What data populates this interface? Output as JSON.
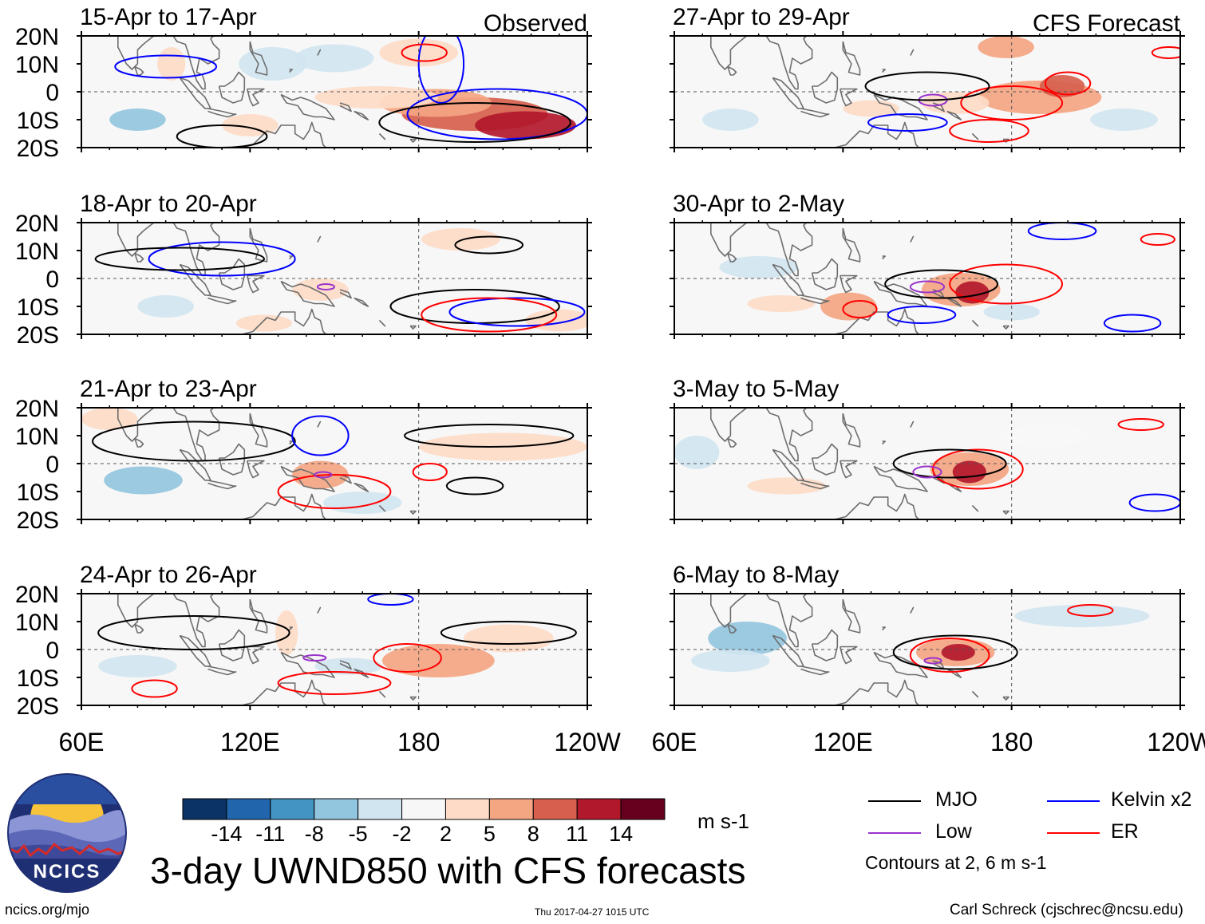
{
  "chart_data": {
    "type": "heatmap",
    "title": "3-day UWND850 with CFS forecasts",
    "units": "m s-1",
    "column_labels": {
      "left": "Observed",
      "right": "CFS Forecast"
    },
    "x_ticks": [
      "60E",
      "120E",
      "180",
      "120W"
    ],
    "x_range_deg": [
      60,
      240
    ],
    "y_ticks": [
      "20N",
      "10N",
      "0",
      "10S",
      "20S"
    ],
    "y_range_deg": [
      -20,
      20
    ],
    "colorbar": {
      "levels": [
        "-14",
        "-11",
        "-8",
        "-5",
        "-2",
        "2",
        "5",
        "8",
        "11",
        "14"
      ],
      "colors": [
        "#0b3366",
        "#2166ac",
        "#4393c3",
        "#92c5de",
        "#d1e5f0",
        "#f7f7f7",
        "#fddbc7",
        "#f4a582",
        "#d6604d",
        "#b2182b",
        "#67001f"
      ]
    },
    "panels": [
      {
        "id": "p1",
        "column": "left",
        "row": 0,
        "label": "15-Apr to 17-Apr",
        "tag": "Observed",
        "anomalies": [
          {
            "lon": 200,
            "lat": -8,
            "rx": 26,
            "ry": 6,
            "value": 11
          },
          {
            "lon": 218,
            "lat": -12,
            "rx": 18,
            "ry": 5,
            "value": 12
          },
          {
            "lon": 186,
            "lat": -4,
            "rx": 20,
            "ry": 5,
            "value": 8
          },
          {
            "lon": 165,
            "lat": -2,
            "rx": 22,
            "ry": 4,
            "value": 4
          },
          {
            "lon": 180,
            "lat": 14,
            "rx": 14,
            "ry": 5,
            "value": 4
          },
          {
            "lon": 92,
            "lat": 10,
            "rx": 5,
            "ry": 6,
            "value": 4
          },
          {
            "lon": 80,
            "lat": -10,
            "rx": 10,
            "ry": 4,
            "value": -5
          },
          {
            "lon": 128,
            "lat": 10,
            "rx": 12,
            "ry": 6,
            "value": -3
          },
          {
            "lon": 120,
            "lat": -12,
            "rx": 10,
            "ry": 4,
            "value": 4
          },
          {
            "lon": 150,
            "lat": 12,
            "rx": 14,
            "ry": 5,
            "value": -3
          }
        ],
        "contours": [
          {
            "type": "Kelvin",
            "lon": 208,
            "lat": -8,
            "rx": 32,
            "ry": 9
          },
          {
            "type": "Kelvin",
            "lon": 188,
            "lat": 10,
            "rx": 8,
            "ry": 14
          },
          {
            "type": "MJO",
            "lon": 200,
            "lat": -11,
            "rx": 34,
            "ry": 7
          },
          {
            "type": "MJO",
            "lon": 110,
            "lat": -16,
            "rx": 16,
            "ry": 4
          },
          {
            "type": "Kelvin",
            "lon": 90,
            "lat": 9,
            "rx": 18,
            "ry": 4
          },
          {
            "type": "ER",
            "lon": 182,
            "lat": 14,
            "rx": 8,
            "ry": 3
          }
        ]
      },
      {
        "id": "p2",
        "column": "right",
        "row": 0,
        "label": "27-Apr to 29-Apr",
        "tag": "CFS Forecast",
        "anomalies": [
          {
            "lon": 190,
            "lat": -2,
            "rx": 22,
            "ry": 6,
            "value": 6
          },
          {
            "lon": 198,
            "lat": 2,
            "rx": 8,
            "ry": 4,
            "value": 9
          },
          {
            "lon": 178,
            "lat": 16,
            "rx": 10,
            "ry": 4,
            "value": 8
          },
          {
            "lon": 160,
            "lat": -4,
            "rx": 12,
            "ry": 4,
            "value": 5
          },
          {
            "lon": 80,
            "lat": -10,
            "rx": 10,
            "ry": 4,
            "value": -3
          },
          {
            "lon": 220,
            "lat": -10,
            "rx": 12,
            "ry": 4,
            "value": -3
          },
          {
            "lon": 130,
            "lat": -6,
            "rx": 10,
            "ry": 3,
            "value": 4
          }
        ],
        "contours": [
          {
            "type": "ER",
            "lon": 180,
            "lat": -4,
            "rx": 18,
            "ry": 6
          },
          {
            "type": "ER",
            "lon": 200,
            "lat": 3,
            "rx": 8,
            "ry": 4
          },
          {
            "type": "ER",
            "lon": 172,
            "lat": -14,
            "rx": 14,
            "ry": 4
          },
          {
            "type": "Low",
            "lon": 152,
            "lat": -3,
            "rx": 5,
            "ry": 2
          },
          {
            "type": "MJO",
            "lon": 150,
            "lat": 2,
            "rx": 22,
            "ry": 5
          },
          {
            "type": "Kelvin",
            "lon": 143,
            "lat": -11,
            "rx": 14,
            "ry": 3
          },
          {
            "type": "ER",
            "lon": 236,
            "lat": 14,
            "rx": 6,
            "ry": 2
          }
        ]
      },
      {
        "id": "p3",
        "column": "left",
        "row": 1,
        "label": "18-Apr to 20-Apr",
        "anomalies": [
          {
            "lon": 230,
            "lat": -15,
            "rx": 12,
            "ry": 4,
            "value": 5
          },
          {
            "lon": 145,
            "lat": -4,
            "rx": 10,
            "ry": 4,
            "value": 3
          },
          {
            "lon": 90,
            "lat": -10,
            "rx": 10,
            "ry": 4,
            "value": -3
          },
          {
            "lon": 195,
            "lat": 14,
            "rx": 14,
            "ry": 4,
            "value": 3
          },
          {
            "lon": 125,
            "lat": -16,
            "rx": 10,
            "ry": 3,
            "value": 3
          }
        ],
        "contours": [
          {
            "type": "MJO",
            "lon": 200,
            "lat": -10,
            "rx": 30,
            "ry": 6
          },
          {
            "type": "Kelvin",
            "lon": 215,
            "lat": -12,
            "rx": 24,
            "ry": 5
          },
          {
            "type": "ER",
            "lon": 205,
            "lat": -13,
            "rx": 24,
            "ry": 6
          },
          {
            "type": "Kelvin",
            "lon": 110,
            "lat": 7,
            "rx": 26,
            "ry": 6
          },
          {
            "type": "MJO",
            "lon": 95,
            "lat": 7,
            "rx": 30,
            "ry": 4
          },
          {
            "type": "MJO",
            "lon": 205,
            "lat": 12,
            "rx": 12,
            "ry": 3
          },
          {
            "type": "Low",
            "lon": 147,
            "lat": -3,
            "rx": 3,
            "ry": 1
          }
        ]
      },
      {
        "id": "p4",
        "column": "right",
        "row": 1,
        "label": "30-Apr to 2-May",
        "anomalies": [
          {
            "lon": 162,
            "lat": -4,
            "rx": 14,
            "ry": 6,
            "value": 7
          },
          {
            "lon": 166,
            "lat": -5,
            "rx": 6,
            "ry": 4,
            "value": 12
          },
          {
            "lon": 122,
            "lat": -10,
            "rx": 10,
            "ry": 5,
            "value": 6
          },
          {
            "lon": 98,
            "lat": -9,
            "rx": 12,
            "ry": 3,
            "value": 4
          },
          {
            "lon": 90,
            "lat": 4,
            "rx": 14,
            "ry": 4,
            "value": -4
          },
          {
            "lon": 180,
            "lat": -12,
            "rx": 10,
            "ry": 3,
            "value": -3
          }
        ],
        "contours": [
          {
            "type": "ER",
            "lon": 178,
            "lat": -2,
            "rx": 20,
            "ry": 7
          },
          {
            "type": "MJO",
            "lon": 155,
            "lat": -2,
            "rx": 20,
            "ry": 5
          },
          {
            "type": "Low",
            "lon": 150,
            "lat": -3,
            "rx": 6,
            "ry": 2
          },
          {
            "type": "Kelvin",
            "lon": 148,
            "lat": -13,
            "rx": 12,
            "ry": 3
          },
          {
            "type": "ER",
            "lon": 126,
            "lat": -11,
            "rx": 6,
            "ry": 3
          },
          {
            "type": "Kelvin",
            "lon": 223,
            "lat": -16,
            "rx": 10,
            "ry": 3
          },
          {
            "type": "Kelvin",
            "lon": 198,
            "lat": 17,
            "rx": 12,
            "ry": 3
          },
          {
            "type": "ER",
            "lon": 232,
            "lat": 14,
            "rx": 6,
            "ry": 2
          }
        ]
      },
      {
        "id": "p5",
        "column": "left",
        "row": 2,
        "label": "21-Apr to 23-Apr",
        "anomalies": [
          {
            "lon": 145,
            "lat": -4,
            "rx": 10,
            "ry": 5,
            "value": 6
          },
          {
            "lon": 210,
            "lat": 6,
            "rx": 30,
            "ry": 5,
            "value": 3
          },
          {
            "lon": 82,
            "lat": -6,
            "rx": 14,
            "ry": 5,
            "value": -6
          },
          {
            "lon": 70,
            "lat": 16,
            "rx": 10,
            "ry": 4,
            "value": 4
          },
          {
            "lon": 160,
            "lat": -14,
            "rx": 14,
            "ry": 4,
            "value": -3
          }
        ],
        "contours": [
          {
            "type": "MJO",
            "lon": 100,
            "lat": 8,
            "rx": 36,
            "ry": 7
          },
          {
            "type": "MJO",
            "lon": 205,
            "lat": 10,
            "rx": 30,
            "ry": 4
          },
          {
            "type": "MJO",
            "lon": 200,
            "lat": -8,
            "rx": 10,
            "ry": 3
          },
          {
            "type": "ER",
            "lon": 184,
            "lat": -3,
            "rx": 6,
            "ry": 3
          },
          {
            "type": "ER",
            "lon": 150,
            "lat": -10,
            "rx": 20,
            "ry": 6
          },
          {
            "type": "Kelvin",
            "lon": 145,
            "lat": 10,
            "rx": 10,
            "ry": 7
          },
          {
            "type": "Low",
            "lon": 146,
            "lat": -4,
            "rx": 3,
            "ry": 1
          }
        ]
      },
      {
        "id": "p6",
        "column": "right",
        "row": 2,
        "label": "3-May to 5-May",
        "anomalies": [
          {
            "lon": 165,
            "lat": -2,
            "rx": 14,
            "ry": 6,
            "value": 7
          },
          {
            "lon": 165,
            "lat": -3,
            "rx": 6,
            "ry": 4,
            "value": 13
          },
          {
            "lon": 68,
            "lat": 4,
            "rx": 8,
            "ry": 6,
            "value": -4
          },
          {
            "lon": 100,
            "lat": -8,
            "rx": 14,
            "ry": 3,
            "value": 3
          },
          {
            "lon": 192,
            "lat": 10,
            "rx": 16,
            "ry": 4,
            "value": 2
          }
        ],
        "contours": [
          {
            "type": "ER",
            "lon": 168,
            "lat": -2,
            "rx": 16,
            "ry": 7
          },
          {
            "type": "MJO",
            "lon": 158,
            "lat": 0,
            "rx": 20,
            "ry": 5
          },
          {
            "type": "Low",
            "lon": 150,
            "lat": -3,
            "rx": 5,
            "ry": 2
          },
          {
            "type": "ER",
            "lon": 226,
            "lat": 14,
            "rx": 8,
            "ry": 2
          },
          {
            "type": "Kelvin",
            "lon": 231,
            "lat": -14,
            "rx": 9,
            "ry": 3
          }
        ]
      },
      {
        "id": "p7",
        "column": "left",
        "row": 3,
        "label": "24-Apr to 26-Apr",
        "anomalies": [
          {
            "lon": 187,
            "lat": -4,
            "rx": 20,
            "ry": 6,
            "value": 7
          },
          {
            "lon": 212,
            "lat": 4,
            "rx": 16,
            "ry": 5,
            "value": 3
          },
          {
            "lon": 133,
            "lat": 6,
            "rx": 4,
            "ry": 8,
            "value": 4
          },
          {
            "lon": 80,
            "lat": -6,
            "rx": 14,
            "ry": 4,
            "value": -3
          },
          {
            "lon": 155,
            "lat": -6,
            "rx": 12,
            "ry": 3,
            "value": -3
          }
        ],
        "contours": [
          {
            "type": "ER",
            "lon": 176,
            "lat": -3,
            "rx": 12,
            "ry": 5
          },
          {
            "type": "MJO",
            "lon": 100,
            "lat": 6,
            "rx": 34,
            "ry": 6
          },
          {
            "type": "MJO",
            "lon": 212,
            "lat": 6,
            "rx": 24,
            "ry": 4
          },
          {
            "type": "Kelvin",
            "lon": 170,
            "lat": 18,
            "rx": 8,
            "ry": 2
          },
          {
            "type": "Low",
            "lon": 143,
            "lat": -3,
            "rx": 4,
            "ry": 1
          },
          {
            "type": "ER",
            "lon": 150,
            "lat": -12,
            "rx": 20,
            "ry": 4
          },
          {
            "type": "ER",
            "lon": 86,
            "lat": -14,
            "rx": 8,
            "ry": 3
          }
        ]
      },
      {
        "id": "p8",
        "column": "right",
        "row": 3,
        "label": "6-May to 8-May",
        "anomalies": [
          {
            "lon": 160,
            "lat": -1,
            "rx": 14,
            "ry": 5,
            "value": 7
          },
          {
            "lon": 161,
            "lat": -1,
            "rx": 6,
            "ry": 3,
            "value": 12
          },
          {
            "lon": 86,
            "lat": 4,
            "rx": 14,
            "ry": 6,
            "value": -5
          },
          {
            "lon": 80,
            "lat": -4,
            "rx": 14,
            "ry": 4,
            "value": -3
          },
          {
            "lon": 205,
            "lat": 12,
            "rx": 24,
            "ry": 4,
            "value": -2
          }
        ],
        "contours": [
          {
            "type": "ER",
            "lon": 158,
            "lat": -2,
            "rx": 14,
            "ry": 6
          },
          {
            "type": "MJO",
            "lon": 160,
            "lat": -1,
            "rx": 22,
            "ry": 6
          },
          {
            "type": "Low",
            "lon": 152,
            "lat": -4,
            "rx": 3,
            "ry": 1
          },
          {
            "type": "ER",
            "lon": 208,
            "lat": 14,
            "rx": 8,
            "ry": 2
          }
        ]
      }
    ]
  },
  "legend": {
    "items": [
      {
        "label": "MJO",
        "color": "#000000"
      },
      {
        "label": "Kelvin x2",
        "color": "#0000ff"
      },
      {
        "label": "Low",
        "color": "#9933cc"
      },
      {
        "label": "ER",
        "color": "#ff0000"
      }
    ],
    "contour_note": "Contours at 2, 6 m s-1"
  },
  "logo": {
    "text": "NCICS"
  },
  "footer": {
    "site": "ncics.org/mjo",
    "timestamp": "Thu 2017-04-27 1015 UTC",
    "credit": "Carl Schreck (cjschrec@ncsu.edu)"
  },
  "colors": {
    "mjo": "#000000",
    "kelvin": "#0000ff",
    "low": "#9933cc",
    "er": "#ff0000",
    "coast": "#6e6e6e",
    "logo_bg": "#1f2f74",
    "logo_sun": "#f7c33a"
  }
}
